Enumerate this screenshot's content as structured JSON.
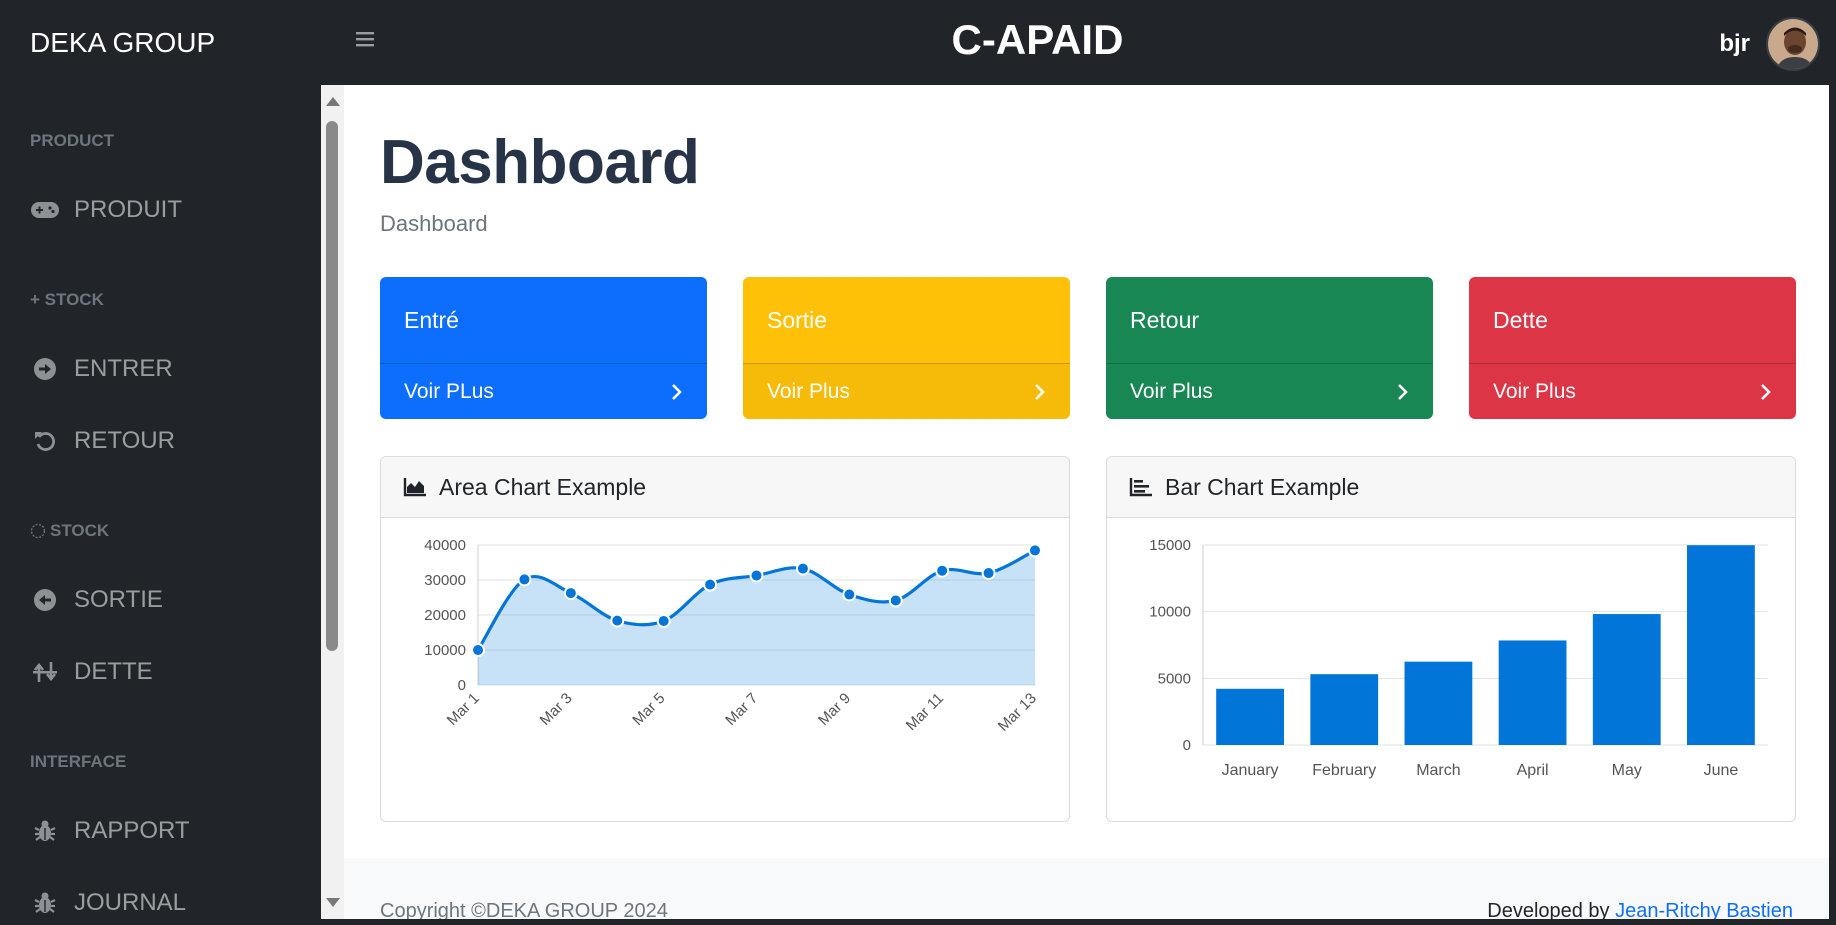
{
  "topnav": {
    "brand": "DEKA GROUP",
    "app_title": "C-APAID",
    "user_name": "bjr"
  },
  "sidebar": {
    "headings": [
      "PRODUCT",
      "+ STOCK",
      "STOCK",
      "INTERFACE"
    ],
    "items": [
      {
        "label": "PRODUIT",
        "icon": "gamepad-icon"
      },
      {
        "label": "ENTRER",
        "icon": "arrow-circle-right-icon"
      },
      {
        "label": "RETOUR",
        "icon": "undo-icon"
      },
      {
        "label": "SORTIE",
        "icon": "arrow-circle-left-icon"
      },
      {
        "label": "DETTE",
        "icon": "exchange-icon"
      },
      {
        "label": "RAPPORT",
        "icon": "bug-icon"
      },
      {
        "label": "JOURNAL",
        "icon": "bug-icon"
      }
    ]
  },
  "main": {
    "title": "Dashboard",
    "breadcrumb": "Dashboard",
    "cards": [
      {
        "title": "Entré",
        "link": "Voir PLus",
        "color": "#0d6efd"
      },
      {
        "title": "Sortie",
        "link": "Voir Plus",
        "color": "#ffc107"
      },
      {
        "title": "Retour",
        "link": "Voir Plus",
        "color": "#198754"
      },
      {
        "title": "Dette",
        "link": "Voir Plus",
        "color": "#dc3545"
      }
    ],
    "area_panel_title": "Area Chart Example",
    "bar_panel_title": "Bar Chart Example"
  },
  "footer": {
    "copyright": "Copyright ©DEKA GROUP 2024",
    "developed_by": "Developed by",
    "developer": "Jean-Ritchy Bastien"
  },
  "chart_data": [
    {
      "type": "area",
      "title": "Area Chart Example",
      "x": [
        "Mar 1",
        "Mar 2",
        "Mar 3",
        "Mar 4",
        "Mar 5",
        "Mar 6",
        "Mar 7",
        "Mar 8",
        "Mar 9",
        "Mar 10",
        "Mar 11",
        "Mar 12",
        "Mar 13"
      ],
      "x_tick_labels": [
        "Mar 1",
        "Mar 3",
        "Mar 5",
        "Mar 7",
        "Mar 9",
        "Mar 11",
        "Mar 13"
      ],
      "values": [
        10000,
        30162,
        26263,
        18394,
        18287,
        28682,
        31274,
        33259,
        25849,
        24159,
        32651,
        31984,
        38451
      ],
      "ylim": [
        0,
        40000
      ],
      "yticks": [
        0,
        10000,
        20000,
        30000,
        40000
      ],
      "color": "#0275d8",
      "grid": true
    },
    {
      "type": "bar",
      "title": "Bar Chart Example",
      "categories": [
        "January",
        "February",
        "March",
        "April",
        "May",
        "June"
      ],
      "values": [
        4215,
        5312,
        6251,
        7841,
        9821,
        14984
      ],
      "ylim": [
        0,
        15000
      ],
      "yticks": [
        0,
        5000,
        10000,
        15000
      ],
      "color": "#0275d8",
      "grid": true
    }
  ]
}
